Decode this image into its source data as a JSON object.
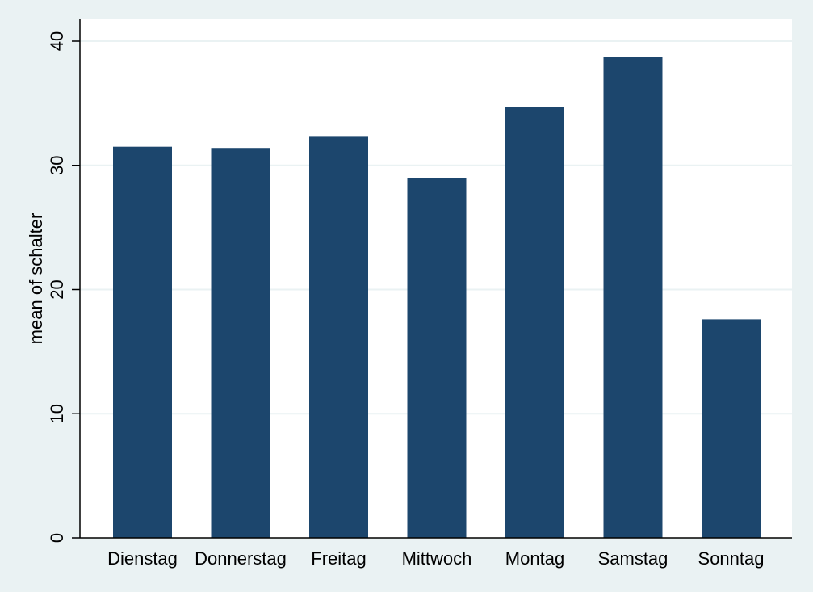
{
  "chart_data": {
    "type": "bar",
    "categories": [
      "Dienstag",
      "Donnerstag",
      "Freitag",
      "Mittwoch",
      "Montag",
      "Samstag",
      "Sonntag"
    ],
    "values": [
      31.5,
      31.4,
      32.3,
      29.0,
      34.7,
      38.7,
      17.6
    ],
    "title": "",
    "xlabel": "",
    "ylabel": "mean of schalter",
    "ylim": [
      0,
      40
    ],
    "yticks": [
      0,
      10,
      20,
      30,
      40
    ],
    "grid": true,
    "legend": "none",
    "colors": {
      "bar": "#1c466d",
      "plot_background": "#ffffff",
      "outer_background": "#eaf2f3",
      "gridline": "#eaf2f3",
      "axis": "#000000"
    }
  }
}
